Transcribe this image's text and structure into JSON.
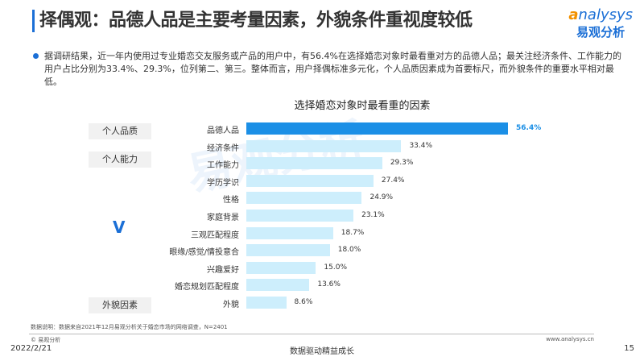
{
  "header": {
    "title": "择偶观：品德人品是主要考量因素，外貌条件重视度较低",
    "logo_en": "nalysys",
    "logo_en_a": "a",
    "logo_cn": "易观分析"
  },
  "summary": "据调研结果，近一年内使用过专业婚恋交友服务或产品的用户中，有56.4%在选择婚恋对象时最看重对方的品德人品；最关注经济条件、工作能力的用户占比分别为33.4%、29.3%，位列第二、第三。整体而言，用户择偶标准多元化，个人品质因素成为首要标尺，而外貌条件的重要水平相对最低。",
  "groups": [
    "个人品质",
    "个人能力",
    "外貌因素"
  ],
  "v_mark": "V",
  "chart_data": {
    "type": "bar",
    "orientation": "horizontal",
    "title": "选择婚恋对象时最看重的因素",
    "categories": [
      "品德人品",
      "经济条件",
      "工作能力",
      "学历学识",
      "性格",
      "家庭背景",
      "三观匹配程度",
      "眼缘/感觉/情投意合",
      "兴趣爱好",
      "婚恋规划匹配程度",
      "外貌"
    ],
    "values": [
      56.4,
      33.4,
      29.3,
      27.4,
      24.9,
      23.1,
      18.7,
      18.0,
      15.0,
      13.6,
      8.6
    ],
    "labels": [
      "56.4%",
      "33.4%",
      "29.3%",
      "27.4%",
      "24.9%",
      "23.1%",
      "18.7%",
      "18.0%",
      "15.0%",
      "13.6%",
      "8.6%"
    ],
    "highlight_color": "#1b8fe6",
    "bar_color": "#cdeefc",
    "unit": "%"
  },
  "footer": {
    "note": "数据说明：数据来自2021年12月易观分析关于婚恋市场的网络调查，N=2401",
    "copyright": "© 易观分析",
    "site": "www.analysys.cn",
    "date": "2022/2/21",
    "slogan": "数据驱动精益成长",
    "page": "15"
  }
}
